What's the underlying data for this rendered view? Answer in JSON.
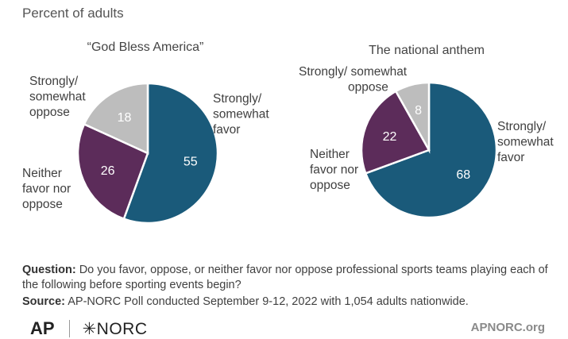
{
  "subtitle": "Percent of adults",
  "colors": {
    "favor": "#1a5a7a",
    "neither": "#5c2c5a",
    "oppose": "#bdbdbd"
  },
  "chart_data": [
    {
      "type": "pie",
      "title": "“God Bless America”",
      "slices": [
        {
          "label": "Strongly/ somewhat favor",
          "value": 55
        },
        {
          "label": "Neither favor nor oppose",
          "value": 26
        },
        {
          "label": "Strongly/ somewhat oppose",
          "value": 18
        }
      ]
    },
    {
      "type": "pie",
      "title": "The national anthem",
      "slices": [
        {
          "label": "Strongly/ somewhat favor",
          "value": 68
        },
        {
          "label": "Neither favor nor oppose",
          "value": 22
        },
        {
          "label": "Strongly/ somewhat oppose",
          "value": 8
        }
      ]
    }
  ],
  "question_label": "Question:",
  "question_text": "Do you favor, oppose, or neither favor nor oppose professional sports teams playing each of the following before sporting events begin?",
  "source_label": "Source:",
  "source_text": "AP-NORC Poll conducted September 9-12, 2022 with 1,054 adults nationwide.",
  "logo_ap": "AP",
  "logo_norc": "✳NORC",
  "site": "APNORC.org"
}
